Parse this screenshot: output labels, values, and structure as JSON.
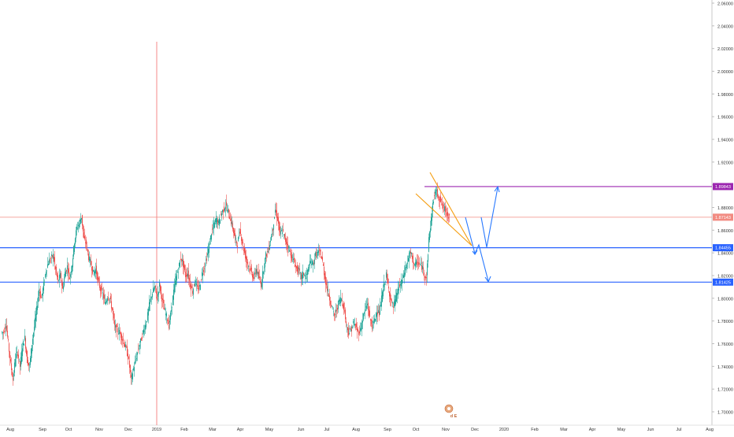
{
  "chart_data": {
    "type": "candlestick",
    "title": "",
    "x_tick_labels": [
      "Aug",
      "Sep",
      "Oct",
      "Nov",
      "Dec",
      "2019",
      "Feb",
      "Mar",
      "Apr",
      "May",
      "Jun",
      "Jul",
      "Aug",
      "Sep",
      "Oct",
      "Nov",
      "Dec",
      "2020",
      "Feb",
      "Mar",
      "Apr",
      "May",
      "Jun",
      "Jul",
      "Aug"
    ],
    "y_tick_labels": [
      "1.70000",
      "1.72000",
      "1.74000",
      "1.76000",
      "1.78000",
      "1.80000",
      "1.82000",
      "1.84000",
      "1.86000",
      "1.88000",
      "1.90000",
      "1.92000",
      "1.94000",
      "1.96000",
      "1.98000",
      "2.00000",
      "2.02000",
      "2.04000",
      "2.06000"
    ],
    "ylim": [
      1.695,
      2.062
    ],
    "grid": false,
    "colors": {
      "up": "#26a69a",
      "down": "#ef5350",
      "support": "#2962ff",
      "resistance": "#9c27b0",
      "current": "#f28b82",
      "wedge": "#f59d0e",
      "projection": "#2979ff"
    },
    "horizontal_levels": [
      {
        "name": "resistance",
        "value": 1.89843,
        "label": "1.89843",
        "color": "#9c27b0"
      },
      {
        "name": "last-price",
        "value": 1.87143,
        "label": "1.87143",
        "color": "#f28b82"
      },
      {
        "name": "support-upper",
        "value": 1.84455,
        "label": "1.84455",
        "color": "#2962ff"
      },
      {
        "name": "support-lower",
        "value": 1.81425,
        "label": "1.81425",
        "color": "#2962ff"
      }
    ],
    "price_series_close": [
      [
        0,
        1.77
      ],
      [
        3,
        1.778
      ],
      [
        6,
        1.76
      ],
      [
        9,
        1.742
      ],
      [
        12,
        1.728
      ],
      [
        15,
        1.748
      ],
      [
        18,
        1.752
      ],
      [
        21,
        1.74
      ],
      [
        24,
        1.758
      ],
      [
        27,
        1.765
      ],
      [
        30,
        1.745
      ],
      [
        33,
        1.74
      ],
      [
        36,
        1.76
      ],
      [
        39,
        1.775
      ],
      [
        42,
        1.79
      ],
      [
        45,
        1.808
      ],
      [
        48,
        1.8
      ],
      [
        51,
        1.812
      ],
      [
        54,
        1.825
      ],
      [
        57,
        1.832
      ],
      [
        60,
        1.835
      ],
      [
        63,
        1.838
      ],
      [
        66,
        1.825
      ],
      [
        69,
        1.815
      ],
      [
        72,
        1.82
      ],
      [
        75,
        1.808
      ],
      [
        78,
        1.822
      ],
      [
        81,
        1.828
      ],
      [
        84,
        1.818
      ],
      [
        87,
        1.83
      ],
      [
        90,
        1.85
      ],
      [
        93,
        1.862
      ],
      [
        96,
        1.866
      ],
      [
        99,
        1.872
      ],
      [
        102,
        1.852
      ],
      [
        105,
        1.848
      ],
      [
        108,
        1.836
      ],
      [
        111,
        1.83
      ],
      [
        114,
        1.822
      ],
      [
        117,
        1.826
      ],
      [
        120,
        1.815
      ],
      [
        123,
        1.808
      ],
      [
        126,
        1.804
      ],
      [
        129,
        1.795
      ],
      [
        132,
        1.802
      ],
      [
        135,
        1.8
      ],
      [
        138,
        1.79
      ],
      [
        141,
        1.775
      ],
      [
        144,
        1.772
      ],
      [
        147,
        1.77
      ],
      [
        150,
        1.766
      ],
      [
        153,
        1.76
      ],
      [
        156,
        1.755
      ],
      [
        159,
        1.745
      ],
      [
        162,
        1.728
      ],
      [
        165,
        1.738
      ],
      [
        168,
        1.746
      ],
      [
        171,
        1.755
      ],
      [
        174,
        1.762
      ],
      [
        177,
        1.77
      ],
      [
        180,
        1.776
      ],
      [
        183,
        1.785
      ],
      [
        186,
        1.798
      ],
      [
        189,
        1.805
      ],
      [
        192,
        1.81
      ],
      [
        195,
        1.8
      ],
      [
        198,
        1.812
      ],
      [
        201,
        1.8
      ],
      [
        204,
        1.79
      ],
      [
        207,
        1.784
      ],
      [
        210,
        1.776
      ],
      [
        213,
        1.79
      ],
      [
        216,
        1.806
      ],
      [
        219,
        1.818
      ],
      [
        222,
        1.826
      ],
      [
        225,
        1.836
      ],
      [
        228,
        1.83
      ],
      [
        231,
        1.82
      ],
      [
        234,
        1.822
      ],
      [
        237,
        1.812
      ],
      [
        240,
        1.806
      ],
      [
        243,
        1.816
      ],
      [
        246,
        1.808
      ],
      [
        249,
        1.81
      ],
      [
        252,
        1.822
      ],
      [
        255,
        1.828
      ],
      [
        258,
        1.836
      ],
      [
        261,
        1.846
      ],
      [
        264,
        1.858
      ],
      [
        267,
        1.864
      ],
      [
        270,
        1.87
      ],
      [
        273,
        1.866
      ],
      [
        276,
        1.874
      ],
      [
        279,
        1.878
      ],
      [
        282,
        1.882
      ],
      [
        285,
        1.876
      ],
      [
        288,
        1.87
      ],
      [
        291,
        1.862
      ],
      [
        294,
        1.852
      ],
      [
        297,
        1.848
      ],
      [
        300,
        1.86
      ],
      [
        303,
        1.85
      ],
      [
        306,
        1.84
      ],
      [
        309,
        1.832
      ],
      [
        312,
        1.828
      ],
      [
        315,
        1.822
      ],
      [
        318,
        1.818
      ],
      [
        321,
        1.826
      ],
      [
        324,
        1.818
      ],
      [
        327,
        1.812
      ],
      [
        330,
        1.826
      ],
      [
        333,
        1.838
      ],
      [
        336,
        1.842
      ],
      [
        339,
        1.852
      ],
      [
        342,
        1.862
      ],
      [
        345,
        1.878
      ],
      [
        348,
        1.87
      ],
      [
        351,
        1.856
      ],
      [
        354,
        1.86
      ],
      [
        357,
        1.852
      ],
      [
        360,
        1.848
      ],
      [
        363,
        1.842
      ],
      [
        366,
        1.836
      ],
      [
        369,
        1.832
      ],
      [
        372,
        1.826
      ],
      [
        375,
        1.824
      ],
      [
        378,
        1.818
      ],
      [
        381,
        1.822
      ],
      [
        384,
        1.818
      ],
      [
        387,
        1.826
      ],
      [
        390,
        1.832
      ],
      [
        393,
        1.83
      ],
      [
        396,
        1.838
      ],
      [
        399,
        1.84
      ],
      [
        402,
        1.84
      ],
      [
        405,
        1.832
      ],
      [
        408,
        1.818
      ],
      [
        411,
        1.808
      ],
      [
        414,
        1.8
      ],
      [
        417,
        1.792
      ],
      [
        420,
        1.784
      ],
      [
        423,
        1.79
      ],
      [
        426,
        1.798
      ],
      [
        429,
        1.8
      ],
      [
        432,
        1.792
      ],
      [
        435,
        1.778
      ],
      [
        438,
        1.77
      ],
      [
        441,
        1.772
      ],
      [
        444,
        1.778
      ],
      [
        447,
        1.775
      ],
      [
        450,
        1.77
      ],
      [
        453,
        1.772
      ],
      [
        456,
        1.782
      ],
      [
        459,
        1.79
      ],
      [
        462,
        1.795
      ],
      [
        465,
        1.782
      ],
      [
        468,
        1.776
      ],
      [
        471,
        1.78
      ],
      [
        474,
        1.79
      ],
      [
        477,
        1.786
      ],
      [
        480,
        1.8
      ],
      [
        483,
        1.812
      ],
      [
        486,
        1.82
      ],
      [
        489,
        1.808
      ],
      [
        492,
        1.798
      ],
      [
        495,
        1.792
      ],
      [
        498,
        1.8
      ],
      [
        501,
        1.808
      ],
      [
        504,
        1.812
      ],
      [
        507,
        1.818
      ],
      [
        510,
        1.826
      ],
      [
        513,
        1.832
      ],
      [
        516,
        1.84
      ],
      [
        519,
        1.836
      ],
      [
        522,
        1.828
      ],
      [
        525,
        1.832
      ],
      [
        528,
        1.83
      ],
      [
        531,
        1.828
      ],
      [
        534,
        1.822
      ],
      [
        537,
        1.818
      ],
      [
        540,
        1.852
      ],
      [
        543,
        1.87
      ],
      [
        546,
        1.888
      ],
      [
        549,
        1.895
      ],
      [
        552,
        1.89
      ],
      [
        555,
        1.886
      ],
      [
        558,
        1.88
      ],
      [
        561,
        1.878
      ],
      [
        564,
        1.874
      ],
      [
        567,
        1.871
      ]
    ]
  },
  "overlay_badge": {
    "label": "d E"
  }
}
